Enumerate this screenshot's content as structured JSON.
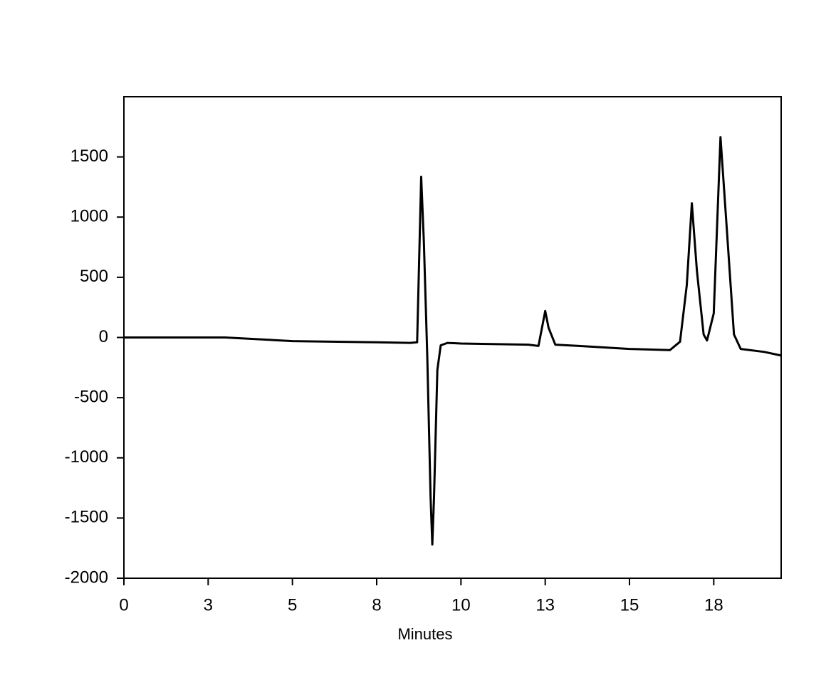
{
  "chart_data": {
    "type": "line",
    "x_label": "Minutes",
    "xlim": [
      0,
      19.5
    ],
    "ylim": [
      -2000,
      2000
    ],
    "xticks": [
      0,
      {
        "value": 2.5,
        "label": "3"
      },
      5,
      {
        "value": 7.5,
        "label": "8"
      },
      10,
      {
        "value": 12.5,
        "label": "13"
      },
      15,
      {
        "value": 17.5,
        "label": "18"
      }
    ],
    "yticks": [
      -2000,
      -1500,
      -1000,
      -500,
      0,
      500,
      1000,
      1500
    ],
    "grid": false,
    "series": [
      {
        "color": "#000000",
        "x": [
          0,
          3,
          5,
          7.5,
          8.5,
          8.7,
          8.82,
          8.9,
          9.0,
          9.1,
          9.15,
          9.2,
          9.3,
          9.4,
          9.6,
          10,
          12,
          12.3,
          12.5,
          12.6,
          12.8,
          13.5,
          15,
          16.2,
          16.5,
          16.7,
          16.85,
          17.0,
          17.2,
          17.3,
          17.5,
          17.7,
          17.9,
          18.1,
          18.3,
          19,
          19.5
        ],
        "values": [
          0,
          0,
          -30,
          -40,
          -45,
          -40,
          1335,
          790,
          -150,
          -1335,
          -1720,
          -1335,
          -270,
          -65,
          -45,
          -50,
          -60,
          -70,
          220,
          80,
          -60,
          -70,
          -95,
          -105,
          -35,
          435,
          1115,
          555,
          25,
          -25,
          200,
          1665,
          850,
          25,
          -95,
          -120,
          -150
        ]
      }
    ]
  }
}
